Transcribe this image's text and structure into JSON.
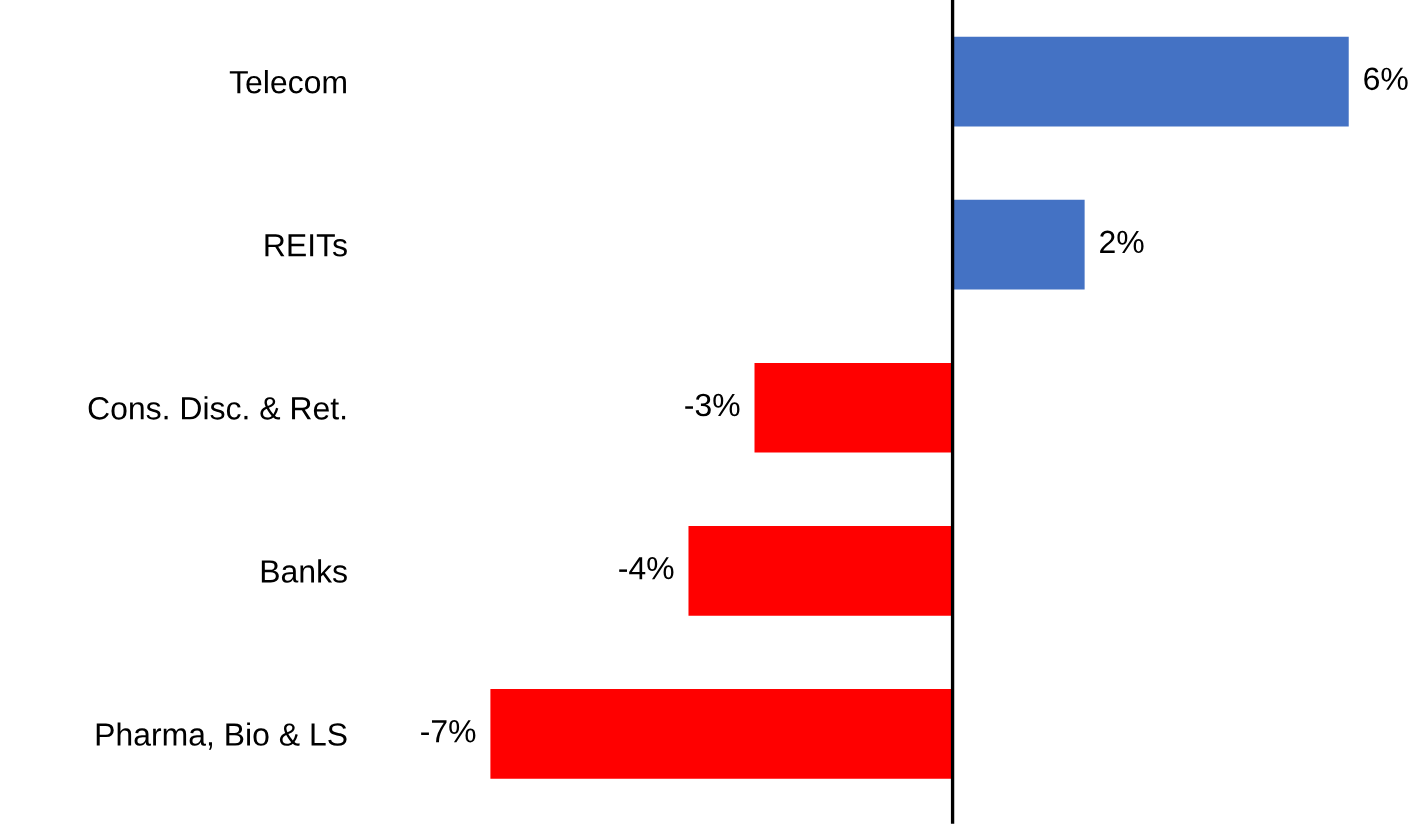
{
  "chart_data": {
    "type": "bar",
    "orientation": "horizontal",
    "categories": [
      "Telecom",
      "REITs",
      "Cons. Disc. & Ret.",
      "Banks",
      "Pharma, Bio & LS"
    ],
    "values": [
      6,
      2,
      -3,
      -4,
      -7
    ],
    "colors": [
      "#4472c4",
      "#4472c4",
      "#ff0000",
      "#ff0000",
      "#ff0000"
    ],
    "value_labels": [
      "6%",
      "2%",
      "-3%",
      "-4%",
      "-7%"
    ],
    "grid": false,
    "legend": false
  }
}
